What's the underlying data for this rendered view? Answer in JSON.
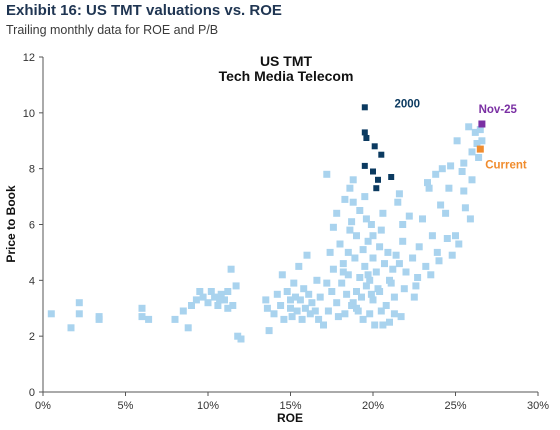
{
  "exhibit": {
    "title": "Exhibit 16: US TMT valuations vs. ROE",
    "subtitle": "Trailing monthly data for ROE and P/B"
  },
  "colors": {
    "history": "#a9d3ee",
    "year2000": "#0b3a60",
    "nov25": "#7a2fa3",
    "current": "#f08c2e",
    "axis": "#555555"
  },
  "chart_data": {
    "type": "scatter",
    "title": [
      "US TMT",
      "Tech Media Telecom"
    ],
    "xlabel": "ROE",
    "ylabel": "Price to Book",
    "xlim": [
      0,
      0.3
    ],
    "ylim": [
      0,
      12
    ],
    "xticks": [
      0,
      0.05,
      0.1,
      0.15,
      0.2,
      0.25,
      0.3
    ],
    "xtick_labels": [
      "0%",
      "5%",
      "10%",
      "15%",
      "20%",
      "25%",
      "30%"
    ],
    "yticks": [
      0,
      2,
      4,
      6,
      8,
      10,
      12
    ],
    "ytick_labels": [
      "0",
      "2",
      "4",
      "6",
      "8",
      "10",
      "12"
    ],
    "grid": false,
    "series": [
      {
        "key": "history",
        "points": [
          [
            0.005,
            2.8
          ],
          [
            0.017,
            2.3
          ],
          [
            0.022,
            3.2
          ],
          [
            0.022,
            2.8
          ],
          [
            0.034,
            2.7
          ],
          [
            0.034,
            2.6
          ],
          [
            0.06,
            3.0
          ],
          [
            0.06,
            2.7
          ],
          [
            0.064,
            2.6
          ],
          [
            0.08,
            2.6
          ],
          [
            0.085,
            2.9
          ],
          [
            0.088,
            2.3
          ],
          [
            0.09,
            3.1
          ],
          [
            0.093,
            3.3
          ],
          [
            0.095,
            3.6
          ],
          [
            0.097,
            3.4
          ],
          [
            0.1,
            3.2
          ],
          [
            0.102,
            3.6
          ],
          [
            0.104,
            3.4
          ],
          [
            0.106,
            3.1
          ],
          [
            0.108,
            3.5
          ],
          [
            0.11,
            3.3
          ],
          [
            0.112,
            3.6
          ],
          [
            0.114,
            4.4
          ],
          [
            0.115,
            3.1
          ],
          [
            0.117,
            3.8
          ],
          [
            0.118,
            2.0
          ],
          [
            0.12,
            1.9
          ],
          [
            0.112,
            3.0
          ],
          [
            0.107,
            3.3
          ],
          [
            0.135,
            3.3
          ],
          [
            0.136,
            3.0
          ],
          [
            0.137,
            2.2
          ],
          [
            0.14,
            2.8
          ],
          [
            0.142,
            3.5
          ],
          [
            0.144,
            3.1
          ],
          [
            0.145,
            4.2
          ],
          [
            0.146,
            2.6
          ],
          [
            0.148,
            3.6
          ],
          [
            0.15,
            3.3
          ],
          [
            0.15,
            3.0
          ],
          [
            0.151,
            2.7
          ],
          [
            0.152,
            3.9
          ],
          [
            0.153,
            3.4
          ],
          [
            0.154,
            2.9
          ],
          [
            0.155,
            4.5
          ],
          [
            0.156,
            3.3
          ],
          [
            0.157,
            2.6
          ],
          [
            0.158,
            3.7
          ],
          [
            0.159,
            3.0
          ],
          [
            0.16,
            4.9
          ],
          [
            0.161,
            3.5
          ],
          [
            0.162,
            2.8
          ],
          [
            0.163,
            3.2
          ],
          [
            0.165,
            2.9
          ],
          [
            0.166,
            4.0
          ],
          [
            0.167,
            2.6
          ],
          [
            0.168,
            3.4
          ],
          [
            0.17,
            2.4
          ],
          [
            0.172,
            3.9
          ],
          [
            0.173,
            2.9
          ],
          [
            0.175,
            3.6
          ],
          [
            0.176,
            4.4
          ],
          [
            0.178,
            3.2
          ],
          [
            0.179,
            2.7
          ],
          [
            0.18,
            5.3
          ],
          [
            0.181,
            3.9
          ],
          [
            0.182,
            4.6
          ],
          [
            0.183,
            2.8
          ],
          [
            0.184,
            3.5
          ],
          [
            0.185,
            4.2
          ],
          [
            0.186,
            5.8
          ],
          [
            0.186,
            7.3
          ],
          [
            0.187,
            3.1
          ],
          [
            0.188,
            7.6
          ],
          [
            0.188,
            6.8
          ],
          [
            0.189,
            4.8
          ],
          [
            0.19,
            3.6
          ],
          [
            0.19,
            5.6
          ],
          [
            0.191,
            2.9
          ],
          [
            0.192,
            4.1
          ],
          [
            0.192,
            6.5
          ],
          [
            0.193,
            3.4
          ],
          [
            0.194,
            5.1
          ],
          [
            0.194,
            2.6
          ],
          [
            0.195,
            4.5
          ],
          [
            0.195,
            7.0
          ],
          [
            0.196,
            3.8
          ],
          [
            0.196,
            6.2
          ],
          [
            0.197,
            5.4
          ],
          [
            0.198,
            4.0
          ],
          [
            0.198,
            2.8
          ],
          [
            0.199,
            6.0
          ],
          [
            0.2,
            3.3
          ],
          [
            0.2,
            4.8
          ],
          [
            0.2,
            5.6
          ],
          [
            0.201,
            2.4
          ],
          [
            0.202,
            4.3
          ],
          [
            0.203,
            3.7
          ],
          [
            0.204,
            5.2
          ],
          [
            0.205,
            2.9
          ],
          [
            0.206,
            6.4
          ],
          [
            0.207,
            4.6
          ],
          [
            0.208,
            3.1
          ],
          [
            0.209,
            5.0
          ],
          [
            0.21,
            2.5
          ],
          [
            0.211,
            3.9
          ],
          [
            0.212,
            4.4
          ],
          [
            0.213,
            3.4
          ],
          [
            0.214,
            4.9
          ],
          [
            0.215,
            6.8
          ],
          [
            0.216,
            7.1
          ],
          [
            0.217,
            2.7
          ],
          [
            0.218,
            5.4
          ],
          [
            0.219,
            3.7
          ],
          [
            0.22,
            4.3
          ],
          [
            0.222,
            6.3
          ],
          [
            0.224,
            4.8
          ],
          [
            0.226,
            3.8
          ],
          [
            0.228,
            5.2
          ],
          [
            0.23,
            6.2
          ],
          [
            0.232,
            4.5
          ],
          [
            0.234,
            7.3
          ],
          [
            0.236,
            5.6
          ],
          [
            0.238,
            7.8
          ],
          [
            0.24,
            4.7
          ],
          [
            0.242,
            8.0
          ],
          [
            0.244,
            6.4
          ],
          [
            0.246,
            7.3
          ],
          [
            0.248,
            4.9
          ],
          [
            0.25,
            5.6
          ],
          [
            0.252,
            5.3
          ],
          [
            0.254,
            7.9
          ],
          [
            0.255,
            8.2
          ],
          [
            0.256,
            6.6
          ],
          [
            0.258,
            9.5
          ],
          [
            0.26,
            7.6
          ],
          [
            0.262,
            9.3
          ],
          [
            0.264,
            8.4
          ],
          [
            0.266,
            9.0
          ],
          [
            0.255,
            7.2
          ],
          [
            0.245,
            5.5
          ],
          [
            0.235,
            4.2
          ],
          [
            0.172,
            7.8
          ],
          [
            0.178,
            6.4
          ],
          [
            0.176,
            5.9
          ],
          [
            0.174,
            5.0
          ],
          [
            0.183,
            6.9
          ],
          [
            0.187,
            6.1
          ],
          [
            0.185,
            5.0
          ],
          [
            0.19,
            3.0
          ],
          [
            0.197,
            4.2
          ],
          [
            0.204,
            3.6
          ],
          [
            0.206,
            2.4
          ],
          [
            0.21,
            4.0
          ],
          [
            0.213,
            2.8
          ],
          [
            0.216,
            4.6
          ],
          [
            0.182,
            4.3
          ],
          [
            0.188,
            3.2
          ],
          [
            0.199,
            3.5
          ],
          [
            0.205,
            5.8
          ],
          [
            0.225,
            3.4
          ],
          [
            0.218,
            6.0
          ],
          [
            0.227,
            4.1
          ],
          [
            0.233,
            7.5
          ],
          [
            0.239,
            5.0
          ],
          [
            0.241,
            6.7
          ],
          [
            0.247,
            8.1
          ],
          [
            0.259,
            6.2
          ],
          [
            0.263,
            8.9
          ],
          [
            0.251,
            9.0
          ],
          [
            0.265,
            9.4
          ],
          [
            0.26,
            8.6
          ]
        ]
      },
      {
        "key": "year2000",
        "name": "2000",
        "points": [
          [
            0.195,
            10.2
          ],
          [
            0.195,
            9.3
          ],
          [
            0.196,
            9.1
          ],
          [
            0.201,
            8.8
          ],
          [
            0.195,
            8.1
          ],
          [
            0.205,
            8.5
          ],
          [
            0.2,
            7.9
          ],
          [
            0.202,
            7.3
          ],
          [
            0.211,
            7.7
          ],
          [
            0.203,
            7.6
          ]
        ]
      },
      {
        "key": "nov25",
        "name": "Nov-25",
        "points": [
          [
            0.266,
            9.6
          ]
        ]
      },
      {
        "key": "current",
        "name": "Current",
        "points": [
          [
            0.265,
            8.7
          ]
        ]
      }
    ],
    "annotations": [
      {
        "key": "year2000",
        "text": "2000"
      },
      {
        "key": "nov25",
        "text": "Nov-25"
      },
      {
        "key": "current",
        "text": "Current"
      }
    ]
  }
}
